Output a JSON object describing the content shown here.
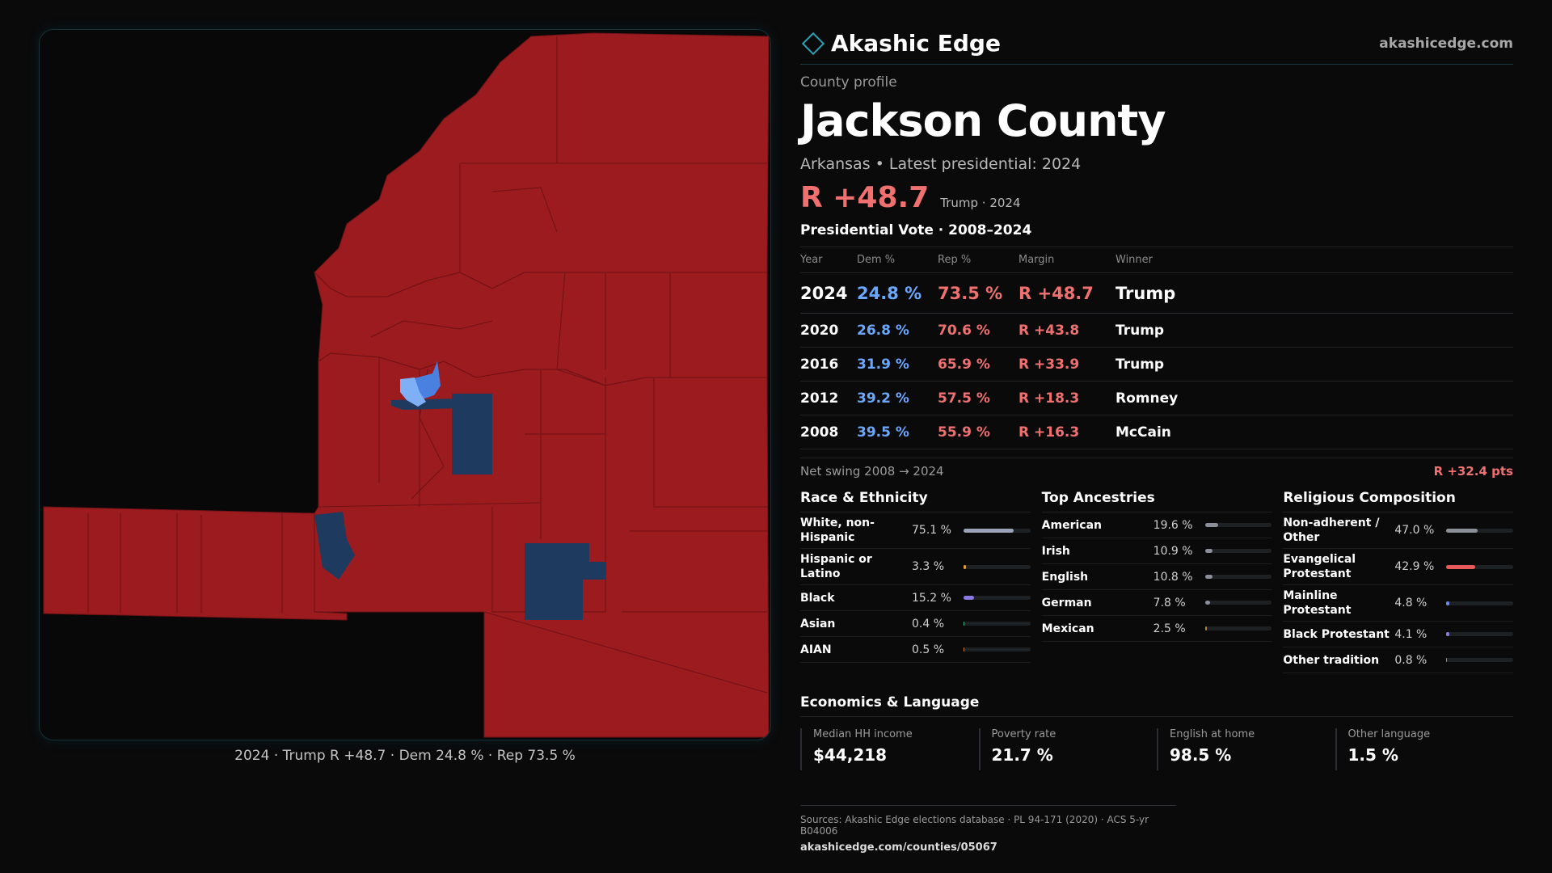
{
  "brand": {
    "name": "Akashic Edge",
    "url": "akashicedge.com",
    "logo_icon": "diamond-outline-icon"
  },
  "profile": {
    "eyebrow": "County profile",
    "county": "Jackson County",
    "subline": "Arkansas • Latest presidential: 2024",
    "margin": "R +48.7",
    "margin_note": "Trump · 2024"
  },
  "vote": {
    "title": "Presidential Vote · 2008–2024",
    "headers": {
      "year": "Year",
      "dem": "Dem %",
      "rep": "Rep %",
      "margin": "Margin",
      "winner": "Winner"
    },
    "rows": [
      {
        "year": "2024",
        "dem": "24.8 %",
        "rep": "73.5 %",
        "margin": "R +48.7",
        "winner": "Trump"
      },
      {
        "year": "2020",
        "dem": "26.8 %",
        "rep": "70.6 %",
        "margin": "R +43.8",
        "winner": "Trump"
      },
      {
        "year": "2016",
        "dem": "31.9 %",
        "rep": "65.9 %",
        "margin": "R +33.9",
        "winner": "Trump"
      },
      {
        "year": "2012",
        "dem": "39.2 %",
        "rep": "57.5 %",
        "margin": "R +18.3",
        "winner": "Romney"
      },
      {
        "year": "2008",
        "dem": "39.5 %",
        "rep": "55.9 %",
        "margin": "R +16.3",
        "winner": "McCain"
      }
    ],
    "swing_label": "Net swing 2008 → 2024",
    "swing_value": "R +32.4 pts"
  },
  "race": {
    "title": "Race & Ethnicity",
    "items": [
      {
        "label": "White, non-Hispanic",
        "value": "75.1 %",
        "pct": 75.1,
        "color": "#9aa3b8"
      },
      {
        "label": "Hispanic or Latino",
        "value": "3.3 %",
        "pct": 3.3,
        "color": "#e0a030"
      },
      {
        "label": "Black",
        "value": "15.2 %",
        "pct": 15.2,
        "color": "#8a7ae0"
      },
      {
        "label": "Asian",
        "value": "0.4 %",
        "pct": 0.4,
        "color": "#3cb88a"
      },
      {
        "label": "AIAN",
        "value": "0.5 %",
        "pct": 0.5,
        "color": "#d0803a"
      }
    ]
  },
  "ancestry": {
    "title": "Top Ancestries",
    "items": [
      {
        "label": "American",
        "value": "19.6 %",
        "pct": 19.6,
        "color": "#8a8f99"
      },
      {
        "label": "Irish",
        "value": "10.9 %",
        "pct": 10.9,
        "color": "#8a8f99"
      },
      {
        "label": "English",
        "value": "10.8 %",
        "pct": 10.8,
        "color": "#8a8f99"
      },
      {
        "label": "German",
        "value": "7.8 %",
        "pct": 7.8,
        "color": "#8a8f99"
      },
      {
        "label": "Mexican",
        "value": "2.5 %",
        "pct": 2.5,
        "color": "#b8853a"
      }
    ]
  },
  "religion": {
    "title": "Religious Composition",
    "items": [
      {
        "label": "Non-adherent / Other",
        "value": "47.0 %",
        "pct": 47.0,
        "color": "#8a8f99"
      },
      {
        "label": "Evangelical Protestant",
        "value": "42.9 %",
        "pct": 42.9,
        "color": "#e85a5a"
      },
      {
        "label": "Mainline Protestant",
        "value": "4.8 %",
        "pct": 4.8,
        "color": "#6a8ae8"
      },
      {
        "label": "Black Protestant",
        "value": "4.1 %",
        "pct": 4.1,
        "color": "#8a7ae0"
      },
      {
        "label": "Other tradition",
        "value": "0.8 %",
        "pct": 0.8,
        "color": "#8a8f99"
      }
    ]
  },
  "economics": {
    "title": "Economics & Language",
    "items": [
      {
        "label": "Median HH income",
        "value": "$44,218"
      },
      {
        "label": "Poverty rate",
        "value": "21.7 %"
      },
      {
        "label": "English at home",
        "value": "98.5 %"
      },
      {
        "label": "Other language",
        "value": "1.5 %"
      }
    ]
  },
  "map": {
    "caption": "2024 · Trump R +48.7 · Dem 24.8 % · Rep 73.5 %",
    "colors": {
      "rep": "#9b1b1f",
      "dem_strong": "#4a80e0",
      "dem_light": "#7fb0f5",
      "dem_dark": "#1f3a5f",
      "border": "#6e1216"
    }
  },
  "sources": {
    "line1": "Sources: Akashic Edge elections database · PL 94-171 (2020) · ACS 5-yr B04006",
    "line2": "akashicedge.com/counties/05067"
  }
}
